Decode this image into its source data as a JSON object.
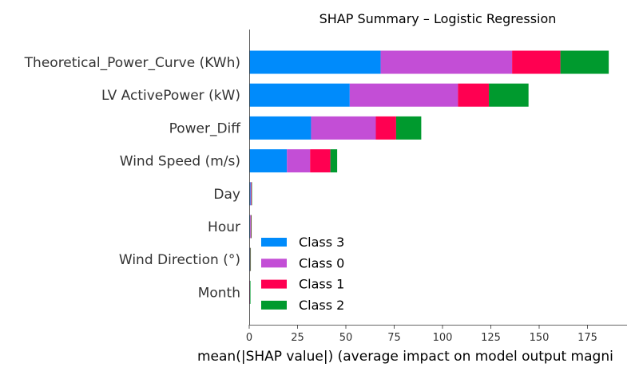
{
  "chart_data": {
    "type": "bar",
    "orientation": "horizontal",
    "stacked": true,
    "title": "SHAP Summary – Logistic Regression",
    "xlabel": "mean(|SHAP value|) (average impact on model output magni",
    "ylabel": "",
    "xlim": [
      0,
      195
    ],
    "xticks": [
      "0",
      "25",
      "50",
      "75",
      "100",
      "125",
      "150",
      "175"
    ],
    "grid": false,
    "legend_position": "lower-left",
    "categories": [
      "Theoretical_Power_Curve (KWh)",
      "LV ActivePower (kW)",
      "Power_Diff",
      "Wind Speed (m/s)",
      "Day",
      "Hour",
      "Wind Direction (°)",
      "Month"
    ],
    "series": [
      {
        "name": "Class 3",
        "color": "#008bfb",
        "values": [
          68,
          52,
          32,
          19.5,
          0.7,
          0.5,
          0.3,
          0.1
        ]
      },
      {
        "name": "Class 0",
        "color": "#c34ed6",
        "values": [
          68,
          56,
          33.5,
          12,
          0.3,
          0.3,
          0.2,
          0.1
        ]
      },
      {
        "name": "Class 1",
        "color": "#ff0051",
        "values": [
          25,
          16,
          10.5,
          10.5,
          0.2,
          0.2,
          0.1,
          0.2
        ]
      },
      {
        "name": "Class 2",
        "color": "#009a2e",
        "values": [
          25,
          20.5,
          13,
          3.5,
          0.2,
          0.2,
          0.1,
          0.1
        ]
      }
    ]
  }
}
